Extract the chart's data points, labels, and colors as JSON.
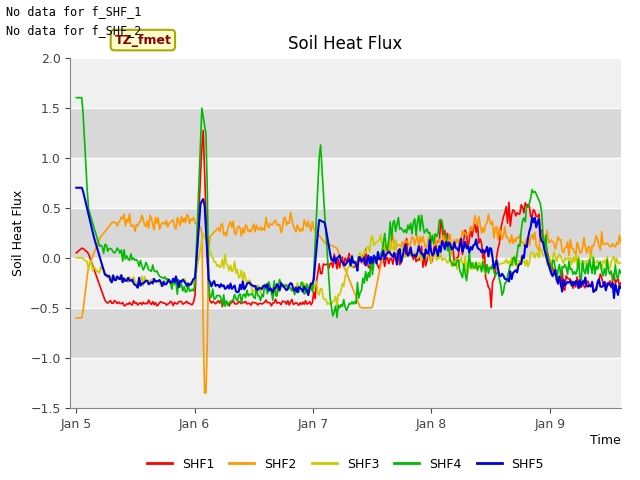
{
  "title": "Soil Heat Flux",
  "ylabel": "Soil Heat Flux",
  "xlabel": "Time",
  "ylim": [
    -1.5,
    2.0
  ],
  "yticks": [
    -1.5,
    -1.0,
    -0.5,
    0.0,
    0.5,
    1.0,
    1.5,
    2.0
  ],
  "colors": {
    "SHF1": "#ff0000",
    "SHF2": "#ff9900",
    "SHF3": "#cccc00",
    "SHF4": "#00bb00",
    "SHF5": "#0000dd"
  },
  "legend_labels": [
    "SHF1",
    "SHF2",
    "SHF3",
    "SHF4",
    "SHF5"
  ],
  "no_data_text": [
    "No data for f_SHF_1",
    "No data for f_SHF_2"
  ],
  "tz_label": "TZ_fmet",
  "figure_bg": "#ffffff",
  "axes_bg_light": "#f0f0f0",
  "axes_bg_dark": "#d8d8d8",
  "grid_color": "#ffffff",
  "xtick_labels": [
    "Jan 5",
    "Jan 6",
    "Jan 7",
    "Jan 8",
    "Jan 9"
  ],
  "n_points": 400,
  "seed": 42
}
